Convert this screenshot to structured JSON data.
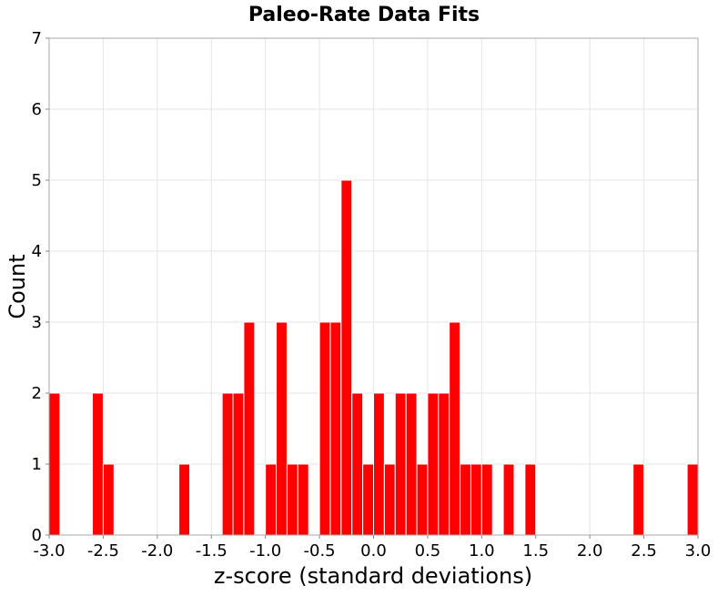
{
  "chart_data": {
    "type": "bar",
    "title": "Paleo-Rate Data Fits",
    "xlabel": "z-score (standard deviations)",
    "ylabel": "Count",
    "xlim": [
      -3.0,
      3.0
    ],
    "ylim": [
      0,
      7
    ],
    "grid": true,
    "bin_width": 0.1,
    "x_ticks": [
      "-3.0",
      "-2.5",
      "-2.0",
      "-1.5",
      "-1.0",
      "-0.5",
      "0.0",
      "0.5",
      "1.0",
      "1.5",
      "2.0",
      "2.5",
      "3.0"
    ],
    "x_tick_values": [
      -3.0,
      -2.5,
      -2.0,
      -1.5,
      -1.0,
      -0.5,
      0.0,
      0.5,
      1.0,
      1.5,
      2.0,
      2.5,
      3.0
    ],
    "y_ticks": [
      "0",
      "1",
      "2",
      "3",
      "4",
      "5",
      "6",
      "7"
    ],
    "y_tick_values": [
      0,
      1,
      2,
      3,
      4,
      5,
      6,
      7
    ],
    "bins": [
      {
        "x": -2.95,
        "count": 2
      },
      {
        "x": -2.55,
        "count": 2
      },
      {
        "x": -2.45,
        "count": 1
      },
      {
        "x": -1.75,
        "count": 1
      },
      {
        "x": -1.35,
        "count": 2
      },
      {
        "x": -1.25,
        "count": 2
      },
      {
        "x": -1.15,
        "count": 3
      },
      {
        "x": -0.95,
        "count": 1
      },
      {
        "x": -0.85,
        "count": 3
      },
      {
        "x": -0.75,
        "count": 1
      },
      {
        "x": -0.65,
        "count": 1
      },
      {
        "x": -0.45,
        "count": 3
      },
      {
        "x": -0.35,
        "count": 3
      },
      {
        "x": -0.25,
        "count": 5
      },
      {
        "x": -0.15,
        "count": 2
      },
      {
        "x": -0.05,
        "count": 1
      },
      {
        "x": 0.05,
        "count": 2
      },
      {
        "x": 0.15,
        "count": 1
      },
      {
        "x": 0.25,
        "count": 2
      },
      {
        "x": 0.35,
        "count": 2
      },
      {
        "x": 0.45,
        "count": 1
      },
      {
        "x": 0.55,
        "count": 2
      },
      {
        "x": 0.65,
        "count": 2
      },
      {
        "x": 0.75,
        "count": 3
      },
      {
        "x": 0.85,
        "count": 1
      },
      {
        "x": 0.95,
        "count": 1
      },
      {
        "x": 1.05,
        "count": 1
      },
      {
        "x": 1.25,
        "count": 1
      },
      {
        "x": 1.45,
        "count": 1
      },
      {
        "x": 2.45,
        "count": 1
      },
      {
        "x": 2.95,
        "count": 1
      }
    ],
    "bar_color": "#ff0000"
  }
}
